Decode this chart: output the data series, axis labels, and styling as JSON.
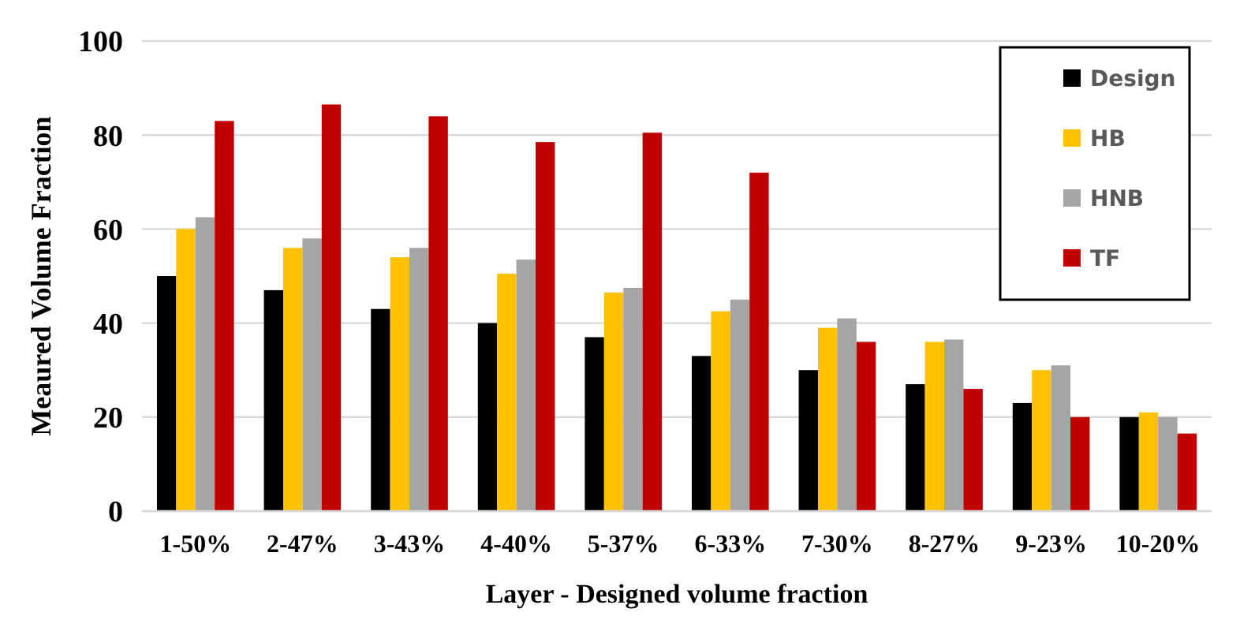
{
  "chart_data": {
    "type": "bar",
    "xlabel": "Layer - Designed volume fraction",
    "ylabel": "Meaured Volume Fraction",
    "categories": [
      "1-50%",
      "2-47%",
      "3-43%",
      "4-40%",
      "5-37%",
      "6-33%",
      "7-30%",
      "8-27%",
      "9-23%",
      "10-20%"
    ],
    "series": [
      {
        "name": "Design",
        "color": "#000000",
        "values": [
          50,
          47,
          43,
          40,
          37,
          33,
          30,
          27,
          23,
          20
        ]
      },
      {
        "name": "HB",
        "color": "#ffc000",
        "values": [
          60,
          56,
          54,
          50.5,
          46.5,
          42.5,
          39,
          36,
          30,
          21
        ]
      },
      {
        "name": "HNB",
        "color": "#a5a5a5",
        "values": [
          62.5,
          58,
          56,
          53.5,
          47.5,
          45,
          41,
          36.5,
          31,
          20
        ]
      },
      {
        "name": "TF",
        "color": "#c00000",
        "values": [
          83,
          86.5,
          84,
          78.5,
          80.5,
          72,
          36,
          26,
          20,
          16.5
        ]
      }
    ],
    "ylim": [
      0,
      100
    ],
    "yticks": [
      0,
      20,
      40,
      60,
      80,
      100
    ],
    "grid": "y",
    "legend": "top right"
  }
}
